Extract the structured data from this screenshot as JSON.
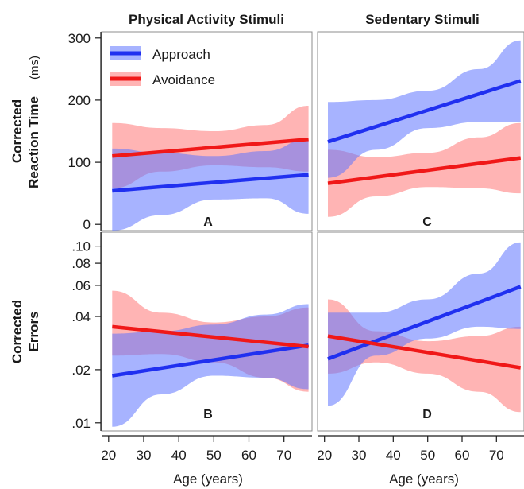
{
  "colors": {
    "approach_line": "#2030f0",
    "approach_band": "#5f74ff",
    "avoidance_line": "#f01818",
    "avoidance_band": "#ff6a6a"
  },
  "figure": {
    "col_titles": [
      "Physical Activity Stimuli",
      "Sedentary Stimuli"
    ],
    "ylabel_top": {
      "line1": "Corrected",
      "line2": "Reaction  Time",
      "unit": "(ms)"
    },
    "ylabel_bottom": {
      "line1": "Corrected",
      "line2": "Errors"
    },
    "xlabel": "Age (years)"
  },
  "legend": {
    "items": [
      "Approach",
      "Avoidance"
    ],
    "placement": "top-left of panel A"
  },
  "chart_data": [
    {
      "panel": "A",
      "type": "line",
      "column": "Physical Activity Stimuli",
      "ylabel": "Corrected Reaction Time (ms)",
      "xlim": [
        18,
        78
      ],
      "ylim": [
        -10,
        310
      ],
      "x_ticks": [
        20,
        30,
        40,
        50,
        60,
        70
      ],
      "y_ticks": [
        0,
        100,
        200,
        300
      ],
      "y_scale": "linear",
      "series": [
        {
          "name": "Approach",
          "color": "#2030f0",
          "x": [
            21,
            77
          ],
          "y": [
            54,
            80
          ],
          "band_x": [
            21,
            35,
            50,
            65,
            77
          ],
          "band_lower": [
            -10,
            15,
            40,
            42,
            17
          ],
          "band_upper": [
            122,
            115,
            110,
            118,
            138
          ]
        },
        {
          "name": "Avoidance",
          "color": "#f01818",
          "x": [
            21,
            77
          ],
          "y": [
            110,
            137
          ],
          "band_x": [
            21,
            35,
            50,
            65,
            77
          ],
          "band_lower": [
            58,
            85,
            95,
            92,
            85
          ],
          "band_upper": [
            163,
            155,
            150,
            160,
            191
          ]
        }
      ]
    },
    {
      "panel": "C",
      "type": "line",
      "column": "Sedentary Stimuli",
      "ylabel": "Corrected Reaction Time (ms)",
      "xlim": [
        18,
        78
      ],
      "ylim": [
        -10,
        310
      ],
      "x_ticks": [
        20,
        30,
        40,
        50,
        60,
        70
      ],
      "y_ticks": [
        0,
        100,
        200,
        300
      ],
      "y_scale": "linear",
      "series": [
        {
          "name": "Approach",
          "color": "#2030f0",
          "x": [
            21,
            77
          ],
          "y": [
            133,
            231
          ],
          "band_x": [
            21,
            35,
            50,
            65,
            77
          ],
          "band_lower": [
            75,
            120,
            155,
            165,
            165
          ],
          "band_upper": [
            197,
            200,
            215,
            250,
            296
          ]
        },
        {
          "name": "Avoidance",
          "color": "#f01818",
          "x": [
            21,
            77
          ],
          "y": [
            66,
            107
          ],
          "band_x": [
            21,
            35,
            50,
            65,
            77
          ],
          "band_lower": [
            12,
            45,
            60,
            58,
            50
          ],
          "band_upper": [
            120,
            108,
            115,
            140,
            163
          ]
        }
      ]
    },
    {
      "panel": "B",
      "type": "line",
      "column": "Physical Activity Stimuli",
      "ylabel": "Corrected Errors",
      "xlim": [
        18,
        78
      ],
      "ylim": [
        0.009,
        0.12
      ],
      "x_ticks": [
        20,
        30,
        40,
        50,
        60,
        70
      ],
      "y_ticks": [
        0.01,
        0.02,
        0.04,
        0.06,
        0.08,
        0.1
      ],
      "y_tick_labels": [
        ".01",
        ".02",
        ".04",
        ".06",
        ".08",
        ".10"
      ],
      "y_scale": "log",
      "series": [
        {
          "name": "Approach",
          "color": "#2030f0",
          "x": [
            21,
            77
          ],
          "y": [
            0.0185,
            0.0275
          ],
          "band_x": [
            21,
            35,
            50,
            65,
            77
          ],
          "band_lower": [
            0.0095,
            0.0145,
            0.0185,
            0.018,
            0.0155
          ],
          "band_upper": [
            0.032,
            0.033,
            0.036,
            0.041,
            0.047
          ]
        },
        {
          "name": "Avoidance",
          "color": "#f01818",
          "x": [
            21,
            77
          ],
          "y": [
            0.035,
            0.027
          ],
          "band_x": [
            21,
            35,
            50,
            65,
            77
          ],
          "band_lower": [
            0.024,
            0.0245,
            0.022,
            0.018,
            0.015
          ],
          "band_upper": [
            0.056,
            0.042,
            0.037,
            0.04,
            0.045
          ]
        }
      ]
    },
    {
      "panel": "D",
      "type": "line",
      "column": "Sedentary Stimuli",
      "ylabel": "Corrected Errors",
      "xlim": [
        18,
        78
      ],
      "ylim": [
        0.009,
        0.12
      ],
      "x_ticks": [
        20,
        30,
        40,
        50,
        60,
        70
      ],
      "y_ticks": [
        0.01,
        0.02,
        0.04,
        0.06,
        0.08,
        0.1
      ],
      "y_tick_labels": [
        ".01",
        ".02",
        ".04",
        ".06",
        ".08",
        ".10"
      ],
      "y_scale": "log",
      "series": [
        {
          "name": "Approach",
          "color": "#2030f0",
          "x": [
            21,
            77
          ],
          "y": [
            0.023,
            0.059
          ],
          "band_x": [
            21,
            35,
            50,
            65,
            77
          ],
          "band_lower": [
            0.0125,
            0.024,
            0.03,
            0.035,
            0.034
          ],
          "band_upper": [
            0.042,
            0.042,
            0.05,
            0.07,
            0.105
          ]
        },
        {
          "name": "Avoidance",
          "color": "#f01818",
          "x": [
            21,
            77
          ],
          "y": [
            0.031,
            0.0205
          ],
          "band_x": [
            21,
            35,
            50,
            65,
            77
          ],
          "band_lower": [
            0.019,
            0.022,
            0.019,
            0.015,
            0.0115
          ],
          "band_upper": [
            0.05,
            0.033,
            0.029,
            0.031,
            0.035
          ]
        }
      ]
    }
  ]
}
